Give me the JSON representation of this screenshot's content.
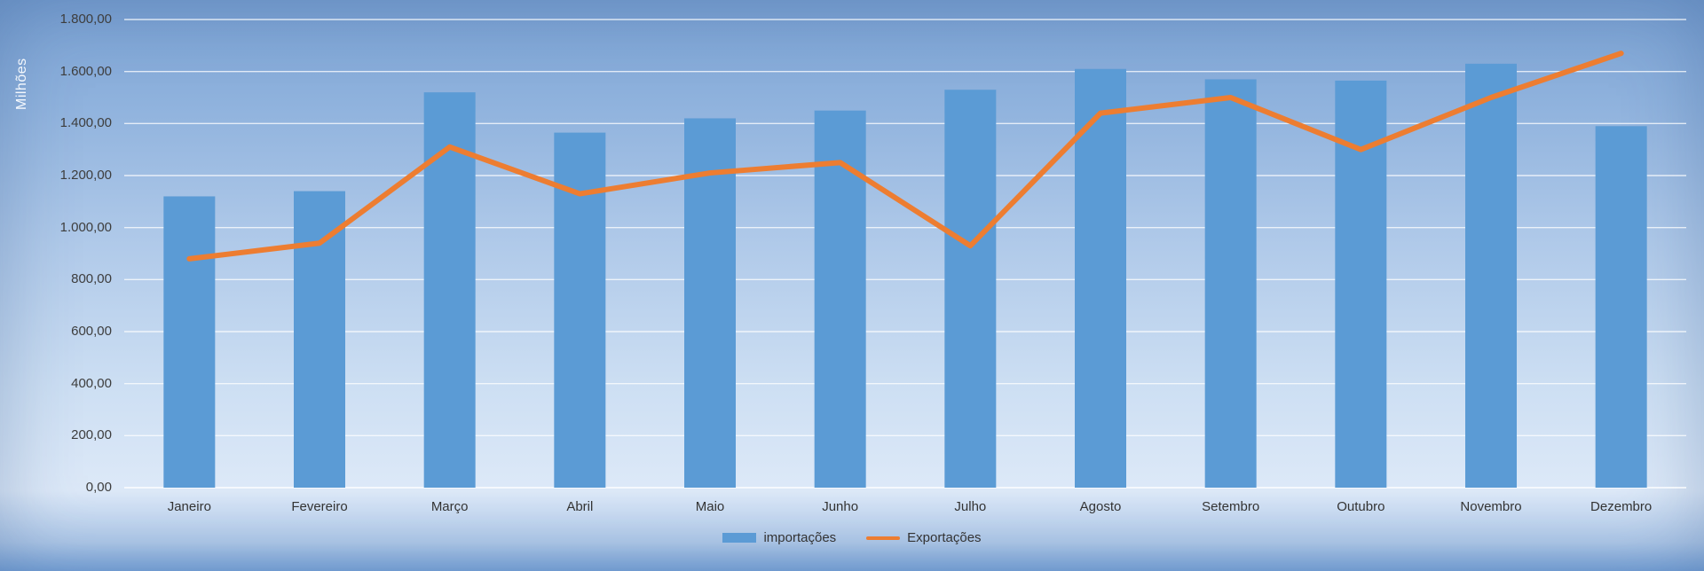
{
  "chart_data": {
    "type": "combo",
    "title": "",
    "xlabel": "",
    "ylabel": "Milhões",
    "ylim": [
      0,
      1800
    ],
    "ytick_step": 200,
    "ytick_labels": [
      "0,00",
      "200,00",
      "400,00",
      "600,00",
      "800,00",
      "1.000,00",
      "1.200,00",
      "1.400,00",
      "1.600,00",
      "1.800,00"
    ],
    "grid": true,
    "legend_position": "bottom",
    "categories": [
      "Janeiro",
      "Fevereiro",
      "Março",
      "Abril",
      "Maio",
      "Junho",
      "Julho",
      "Agosto",
      "Setembro",
      "Outubro",
      "Novembro",
      "Dezembro"
    ],
    "series": [
      {
        "name": "importações",
        "type": "bar",
        "color": "#5B9BD5",
        "values": [
          1120,
          1140,
          1520,
          1365,
          1420,
          1450,
          1530,
          1610,
          1570,
          1565,
          1630,
          1390
        ]
      },
      {
        "name": "Exportações",
        "type": "line",
        "color": "#ED7D31",
        "values": [
          880,
          940,
          1310,
          1130,
          1210,
          1250,
          930,
          1440,
          1500,
          1300,
          1500,
          1670
        ]
      }
    ]
  },
  "colors": {
    "background_top": "#7BA2D3",
    "background_bottom": "#DDE9F8",
    "gridline": "#FFFFFF",
    "text": "#3d3d3d",
    "axis_title": "#F4F8FD"
  }
}
